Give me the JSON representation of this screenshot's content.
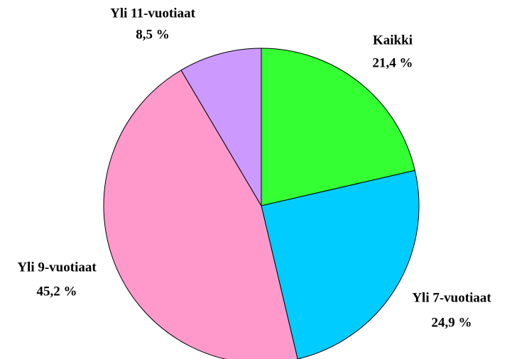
{
  "chart_data": {
    "type": "pie",
    "categories": [
      "Kaikki",
      "Yli 7-vuotiaat",
      "Yli 9-vuotiaat",
      "Yli 11-vuotiaat"
    ],
    "values": [
      21.4,
      24.9,
      45.2,
      8.5
    ],
    "value_labels": [
      "21,4 %",
      "24,9 %",
      "45,2 %",
      "8,5 %"
    ],
    "colors": [
      "#33ff33",
      "#00ccff",
      "#ff99cc",
      "#cc99ff"
    ]
  }
}
